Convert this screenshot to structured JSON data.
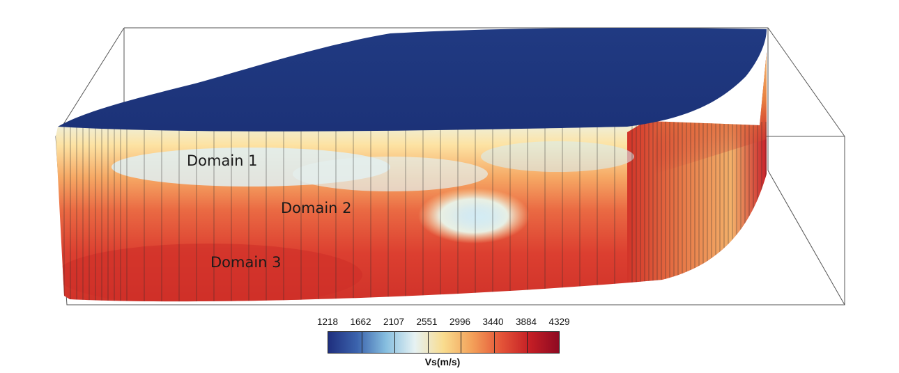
{
  "domains": [
    "Domain 1",
    "Domain 2",
    "Domain 3"
  ],
  "colorbar": {
    "ticks": [
      "1218",
      "1662",
      "2107",
      "2551",
      "2996",
      "3440",
      "3884",
      "4329"
    ],
    "title": "Vs(m/s)",
    "colors": [
      "#1f2f7e",
      "#3b63ad",
      "#86bedf",
      "#e6f2f3",
      "#f9dc8e",
      "#f3a059",
      "#e45438",
      "#c41e25",
      "#8e0a22"
    ]
  }
}
